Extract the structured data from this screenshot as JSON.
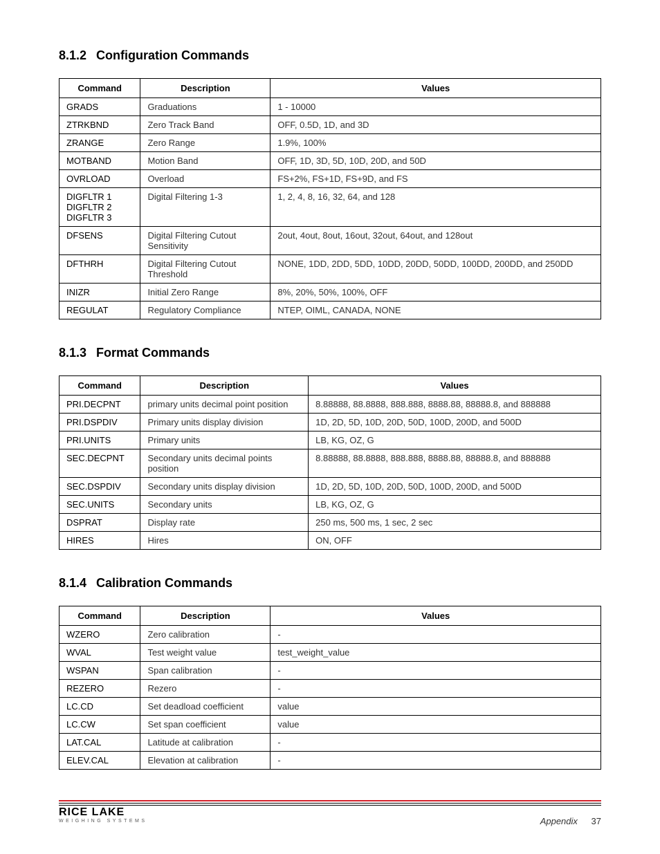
{
  "sections": [
    {
      "num": "8.1.2",
      "title": "Configuration Commands",
      "col_widths": [
        "15%",
        "24%",
        "61%"
      ],
      "headers": [
        "Command",
        "Description",
        "Values"
      ],
      "rows": [
        [
          "GRADS",
          "Graduations",
          "1 - 10000"
        ],
        [
          "ZTRKBND",
          "Zero Track Band",
          "OFF, 0.5D, 1D, and 3D"
        ],
        [
          "ZRANGE",
          "Zero Range",
          "1.9%, 100%"
        ],
        [
          "MOTBAND",
          "Motion Band",
          "OFF, 1D, 3D, 5D, 10D, 20D, and 50D"
        ],
        [
          "OVRLOAD",
          "Overload",
          "FS+2%, FS+1D, FS+9D, and FS"
        ],
        [
          "DIGFLTR 1\nDIGFLTR 2\nDIGFLTR 3",
          "Digital Filtering 1-3",
          "1, 2, 4, 8, 16, 32, 64, and 128"
        ],
        [
          "DFSENS",
          "Digital Filtering Cutout Sensitivity",
          "2out, 4out, 8out, 16out, 32out, 64out, and 128out"
        ],
        [
          "DFTHRH",
          "Digital Filtering Cutout Threshold",
          "NONE, 1DD, 2DD, 5DD, 10DD, 20DD, 50DD, 100DD, 200DD, and 250DD"
        ],
        [
          "INIZR",
          "Initial Zero Range",
          "8%, 20%, 50%, 100%, OFF"
        ],
        [
          "REGULAT",
          "Regulatory Compliance",
          "NTEP, OIML, CANADA, NONE"
        ]
      ]
    },
    {
      "num": "8.1.3",
      "title": "Format Commands",
      "col_widths": [
        "15%",
        "31%",
        "54%"
      ],
      "headers": [
        "Command",
        "Description",
        "Values"
      ],
      "rows": [
        [
          "PRI.DECPNT",
          "primary units decimal point position",
          "8.88888, 88.8888, 888.888, 8888.88, 88888.8, and 888888"
        ],
        [
          "PRI.DSPDIV",
          "Primary units display division",
          "1D, 2D, 5D, 10D, 20D, 50D, 100D, 200D, and 500D"
        ],
        [
          "PRI.UNITS",
          "Primary units",
          "LB, KG, OZ, G"
        ],
        [
          "SEC.DECPNT",
          "Secondary units decimal points position",
          "8.88888, 88.8888, 888.888, 8888.88, 88888.8, and 888888"
        ],
        [
          "SEC.DSPDIV",
          "Secondary units display division",
          "1D, 2D, 5D, 10D, 20D, 50D, 100D, 200D, and 500D"
        ],
        [
          "SEC.UNITS",
          "Secondary units",
          "LB, KG, OZ, G"
        ],
        [
          "DSPRAT",
          "Display rate",
          "250 ms, 500 ms, 1 sec, 2 sec"
        ],
        [
          "HIRES",
          "Hires",
          "ON, OFF"
        ]
      ]
    },
    {
      "num": "8.1.4",
      "title": "Calibration Commands",
      "col_widths": [
        "15%",
        "24%",
        "61%"
      ],
      "headers": [
        "Command",
        "Description",
        "Values"
      ],
      "rows": [
        [
          "WZERO",
          "Zero calibration",
          "-"
        ],
        [
          "WVAL",
          "Test weight value",
          "test_weight_value"
        ],
        [
          "WSPAN",
          "Span calibration",
          "-"
        ],
        [
          "REZERO",
          "Rezero",
          "-"
        ],
        [
          "LC.CD",
          "Set deadload coefficient",
          "value"
        ],
        [
          "LC.CW",
          "Set span coefficient",
          "value"
        ],
        [
          "LAT.CAL",
          "Latitude at calibration",
          "-"
        ],
        [
          "ELEV.CAL",
          "Elevation at calibration",
          "-"
        ]
      ]
    }
  ],
  "footer": {
    "logo_main": "RICE LAKE",
    "logo_sub": "WEIGHING SYSTEMS",
    "appendix_label": "Appendix",
    "page_num": "37",
    "accent_color": "#d4212a"
  }
}
